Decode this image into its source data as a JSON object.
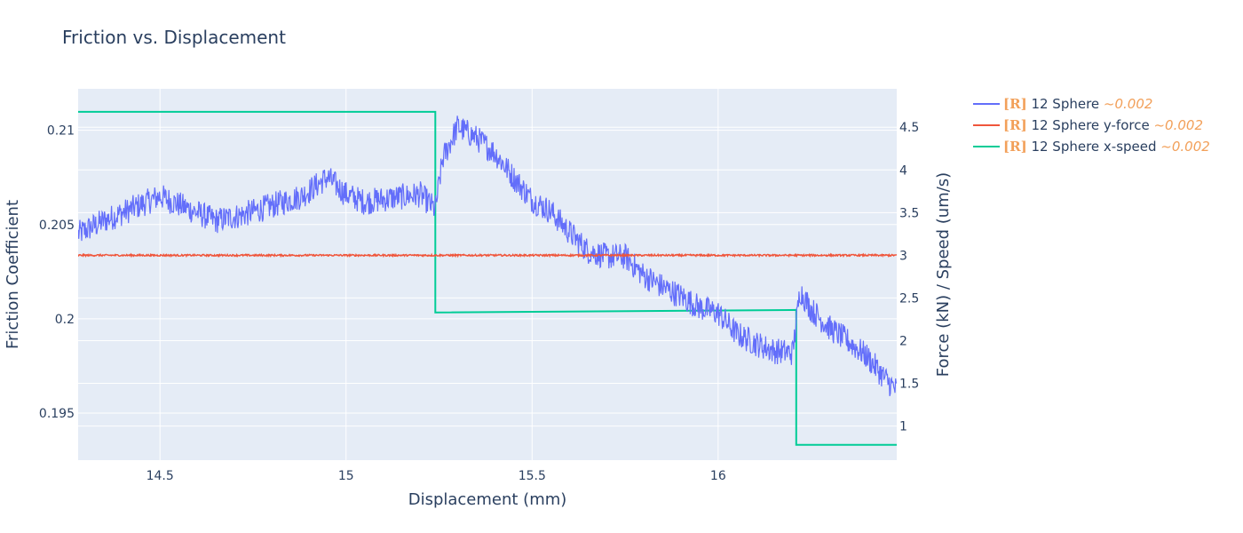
{
  "chart_data": {
    "type": "line",
    "title": "Friction vs. Displacement",
    "xlabel": "Displacement (mm)",
    "ylabel": "Friction Coefficient",
    "y2label": "Force (kN) / Speed (um/s)",
    "xlim": [
      14.28,
      16.48
    ],
    "ylim": [
      0.1925,
      0.2122
    ],
    "y2lim": [
      0.6,
      4.95
    ],
    "x_ticks": [
      14.5,
      15,
      15.5,
      16
    ],
    "x_tick_labels": [
      "14.5",
      "15",
      "15.5",
      "16"
    ],
    "y_ticks": [
      0.195,
      0.2,
      0.205,
      0.21
    ],
    "y_tick_labels": [
      "0.195",
      "0.2",
      "0.205",
      "0.21"
    ],
    "y2_ticks": [
      1,
      1.5,
      2,
      2.5,
      3,
      3.5,
      4,
      4.5
    ],
    "y2_tick_labels": [
      "1",
      "1.5",
      "2",
      "2.5",
      "3",
      "3.5",
      "4",
      "4.5"
    ],
    "grid": true,
    "legend_position": "right-outside-top",
    "series": [
      {
        "name": "12 Sphere",
        "tag": "[R]",
        "tolerance": "~0.002",
        "color": "#636efa",
        "axis": "y",
        "noise": 0.0007,
        "x": [
          14.28,
          14.35,
          14.42,
          14.5,
          14.58,
          14.65,
          14.72,
          14.8,
          14.88,
          14.95,
          15.0,
          15.05,
          15.12,
          15.2,
          15.24,
          15.26,
          15.3,
          15.35,
          15.4,
          15.45,
          15.5,
          15.55,
          15.6,
          15.65,
          15.7,
          15.75,
          15.8,
          15.85,
          15.9,
          15.95,
          16.0,
          16.05,
          16.1,
          16.15,
          16.2,
          16.21,
          16.22,
          16.25,
          16.3,
          16.35,
          16.4,
          16.45,
          16.48
        ],
        "y": [
          0.2045,
          0.2052,
          0.2058,
          0.2065,
          0.2058,
          0.2052,
          0.2055,
          0.206,
          0.2065,
          0.2075,
          0.2066,
          0.2062,
          0.2064,
          0.2066,
          0.2058,
          0.2085,
          0.2102,
          0.2096,
          0.2088,
          0.2075,
          0.2063,
          0.2057,
          0.2046,
          0.2036,
          0.2033,
          0.2033,
          0.2023,
          0.2017,
          0.2012,
          0.2006,
          0.2003,
          0.1992,
          0.1987,
          0.1983,
          0.1982,
          0.1998,
          0.2015,
          0.2005,
          0.1995,
          0.1988,
          0.198,
          0.1968,
          0.1962
        ]
      },
      {
        "name": "12 Sphere y-force",
        "tag": "[R]",
        "tolerance": "~0.002",
        "color": "#ef553b",
        "axis": "y2",
        "noise": 0.01,
        "x": [
          14.28,
          16.48
        ],
        "y": [
          3.0,
          3.0
        ]
      },
      {
        "name": "12 Sphere x-speed",
        "tag": "[R]",
        "tolerance": "~0.002",
        "color": "#00cc96",
        "axis": "y2",
        "noise": 0,
        "step": true,
        "x": [
          14.28,
          15.24,
          15.24,
          16.21,
          16.21,
          16.48
        ],
        "y": [
          4.68,
          4.68,
          2.33,
          2.36,
          0.78,
          0.78
        ]
      }
    ]
  }
}
